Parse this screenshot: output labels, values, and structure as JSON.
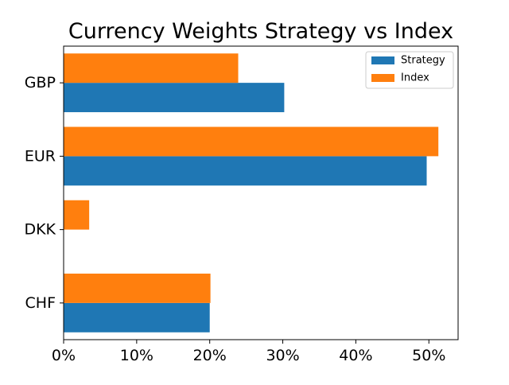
{
  "chart_data": {
    "type": "bar",
    "orientation": "horizontal",
    "title": "Currency Weights Strategy vs Index",
    "xlabel": "",
    "ylabel": "",
    "categories": [
      "CHF",
      "DKK",
      "EUR",
      "GBP"
    ],
    "series": [
      {
        "name": "Strategy",
        "values": [
          0.2,
          0.0,
          0.497,
          0.302
        ],
        "color": "#1f77b4"
      },
      {
        "name": "Index",
        "values": [
          0.201,
          0.035,
          0.513,
          0.239
        ],
        "color": "#ff7f0e"
      }
    ],
    "xlim": [
      0,
      0.54
    ],
    "xticks": [
      0,
      0.1,
      0.2,
      0.3,
      0.4,
      0.5
    ],
    "xtick_labels": [
      "0%",
      "10%",
      "20%",
      "30%",
      "40%",
      "50%"
    ],
    "grid": false,
    "legend_position": "top-right"
  }
}
